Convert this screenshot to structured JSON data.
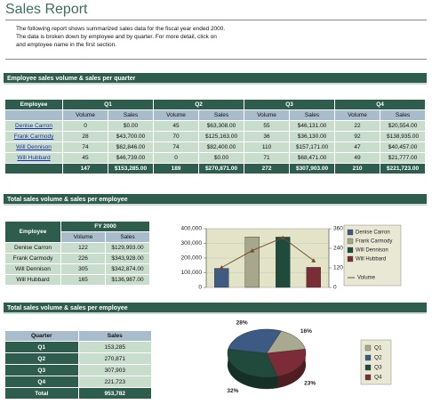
{
  "header": {
    "title": "Sales Report",
    "intro": [
      "The following report shows summarized sales data for the fiscal year ended 2000.",
      "The data is broken down by employee and by quarter.  For more detail, click on",
      "and employee name in the first section."
    ]
  },
  "section1": {
    "title": "Employee sales volume & sales per quarter",
    "table": {
      "header": [
        "Employee",
        "Q1",
        "Q2",
        "Q3",
        "Q4"
      ],
      "subheader": [
        "Volume",
        "Sales"
      ],
      "rows": [
        [
          "Denise Carron",
          0,
          "$0.00",
          45,
          "$63,308.00",
          55,
          "$46,131.00",
          22,
          "$20,554.00"
        ],
        [
          "Frank Carmody",
          28,
          "$43,700.00",
          70,
          "$125,163.00",
          36,
          "$36,130.00",
          92,
          "$138,935.00"
        ],
        [
          "Will Dennison",
          74,
          "$62,846.00",
          74,
          "$82,400.00",
          110,
          "$157,171.00",
          47,
          "$40,457.00"
        ],
        [
          "Will Hubbard",
          45,
          "$46,739.00",
          0,
          "$0.00",
          71,
          "$68,471.00",
          49,
          "$21,777.00"
        ]
      ],
      "totals": [
        147,
        "$153,285.00",
        189,
        "$270,871.00",
        272,
        "$307,903.00",
        210,
        "$221,723.00"
      ]
    }
  },
  "section2": {
    "title": "Total sales volume & sales per employee",
    "table": {
      "header": [
        "Employee",
        "FY 2000"
      ],
      "subheader": [
        "Volume",
        "Sales"
      ],
      "rows": [
        [
          "Denise Carron",
          122,
          "$129,993.00"
        ],
        [
          "Frank Carmody",
          226,
          "$343,928.00"
        ],
        [
          "Will Dennison",
          305,
          "$342,874.00"
        ],
        [
          "Will Hubbard",
          165,
          "$136,987.00"
        ]
      ]
    }
  },
  "section3": {
    "title": "Total sales volume & sales per employee",
    "table": {
      "header": [
        "Quarter",
        "Sales"
      ],
      "rows": [
        [
          "Q1",
          "153,285"
        ],
        [
          "Q2",
          "270,871"
        ],
        [
          "Q3",
          "307,903"
        ],
        [
          "Q4",
          "221,723"
        ],
        [
          "Total",
          "953,782"
        ]
      ]
    }
  },
  "chart_data": [
    {
      "type": "bar_line",
      "categories": [
        "Denise Carron",
        "Frank Carmody",
        "Will Dennison",
        "Will Hubbard"
      ],
      "values": [
        129993,
        343928,
        342874,
        136987
      ],
      "colors": [
        "#3f5b84",
        "#a7a78c",
        "#1f4b3d",
        "#7a2d37"
      ],
      "ylim": [
        0,
        400000
      ],
      "yticks": [
        0,
        {
          "value": 100000,
          "label": "100,000"
        },
        {
          "value": 200000,
          "label": "200,000"
        },
        {
          "value": 300000,
          "label": "300,000"
        },
        {
          "value": 400000,
          "label": "400,000"
        }
      ],
      "line": {
        "name": "Volume",
        "color": "#6e4b2c",
        "values": [
          122,
          226,
          305,
          165
        ],
        "axis": "y2"
      },
      "y2lim": [
        0,
        360
      ],
      "y2ticks": [
        0,
        120,
        240,
        360
      ],
      "grid": true
    },
    {
      "type": "pie",
      "categories": [
        "Q1",
        "Q2",
        "Q3",
        "Q4"
      ],
      "values": [
        16,
        28,
        32,
        23
      ],
      "value_labels": [
        "16%",
        "28%",
        "32%",
        "23%"
      ],
      "colors": [
        "#a9a98f",
        "#3d5a85",
        "#1f4a3c",
        "#7b2c36"
      ]
    }
  ]
}
